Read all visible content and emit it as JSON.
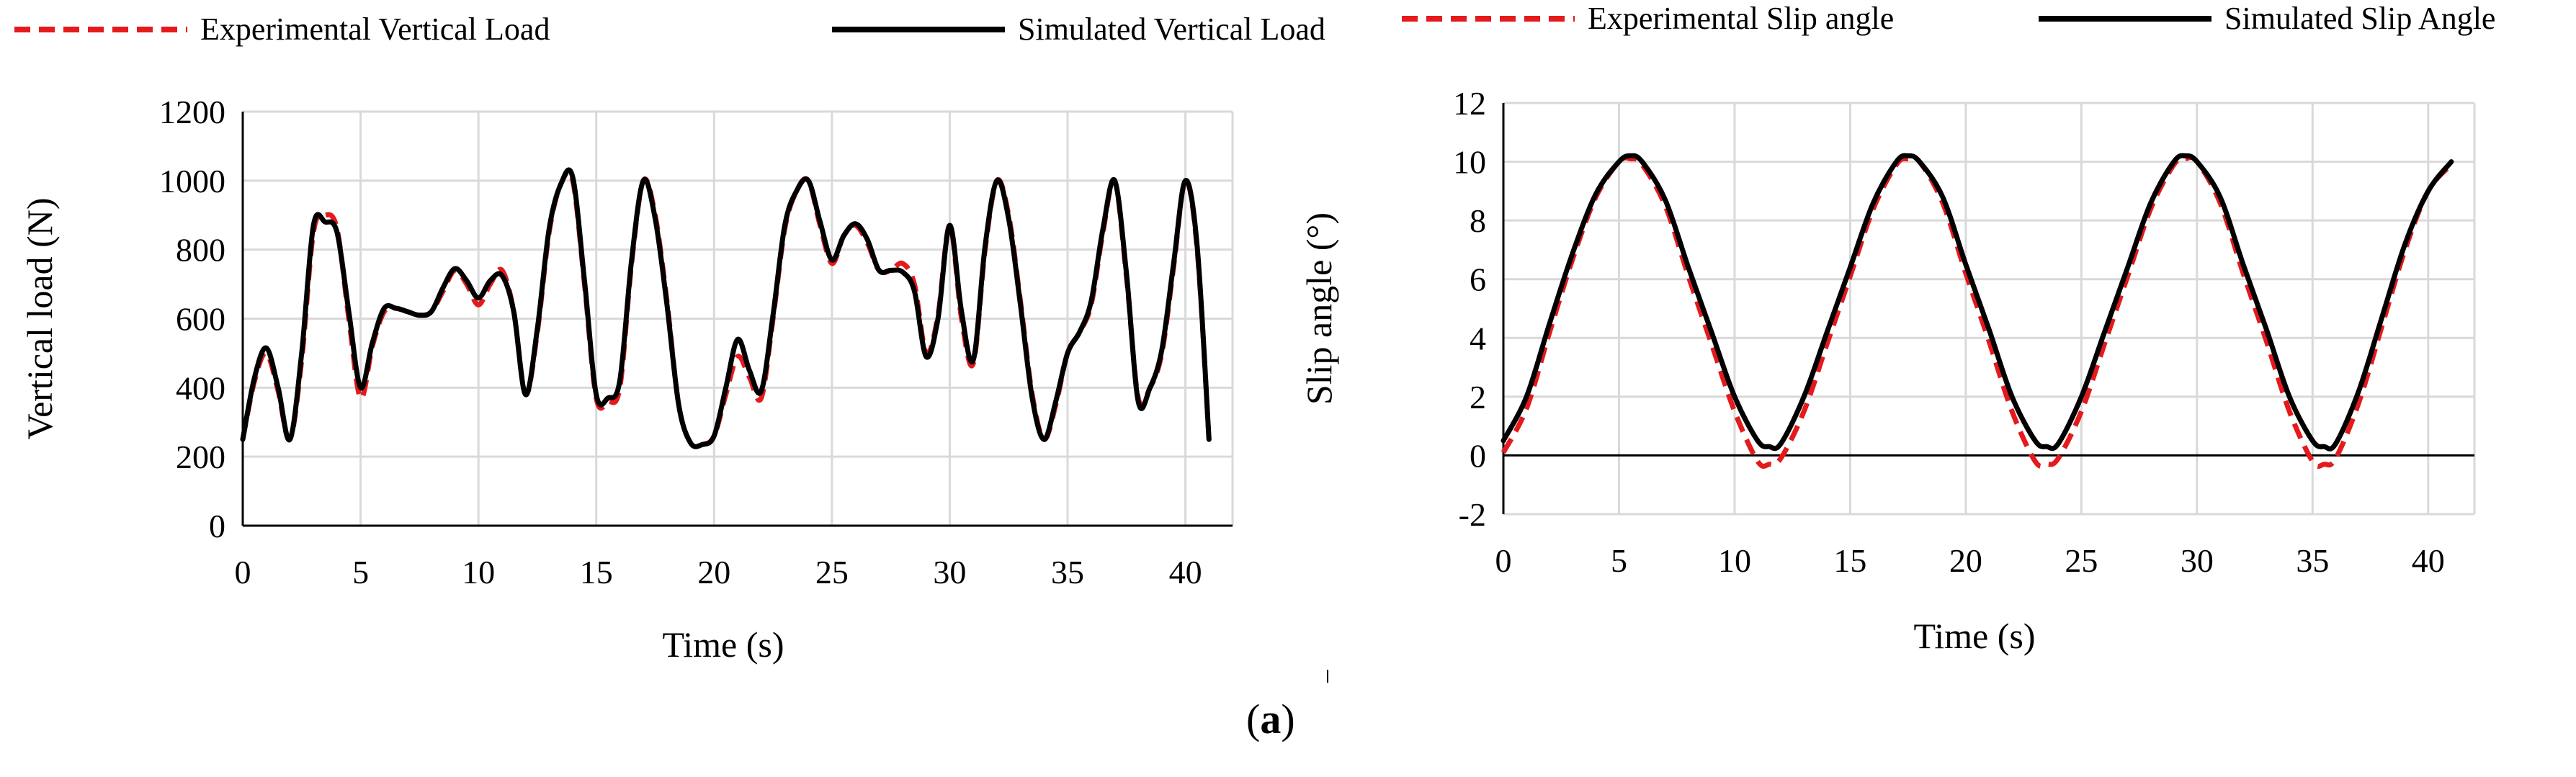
{
  "figure_label": {
    "open": "(",
    "letter": "a",
    "close": ")"
  },
  "colors": {
    "experimental": "#e41a1c",
    "simulated": "#000000",
    "grid": "#d9d9d9",
    "axis": "#000000"
  },
  "chart_data": [
    {
      "type": "line",
      "xlabel": "Time (s)",
      "ylabel": "Vertical load (N)",
      "xlim": [
        0,
        42
      ],
      "ylim": [
        0,
        1200
      ],
      "xticks": [
        0,
        5,
        10,
        15,
        20,
        25,
        30,
        35,
        40
      ],
      "yticks": [
        0,
        200,
        400,
        600,
        800,
        1000,
        1200
      ],
      "grid": true,
      "legend": "top",
      "series": [
        {
          "name": "Experimental Vertical Load",
          "style": "dashed",
          "x": [
            0,
            0.5,
            1,
            1.5,
            2,
            2.5,
            3,
            3.5,
            4,
            4.5,
            5,
            5.5,
            6,
            6.5,
            7,
            7.5,
            8,
            8.5,
            9,
            9.5,
            10,
            10.5,
            11,
            11.5,
            12,
            12.5,
            13,
            13.5,
            14,
            14.5,
            15,
            15.5,
            16,
            16.5,
            17,
            17.5,
            18,
            18.5,
            19,
            19.5,
            20,
            20.5,
            21,
            21.5,
            22,
            22.5,
            23,
            23.5,
            24,
            24.5,
            25,
            25.5,
            26,
            26.5,
            27,
            27.5,
            28,
            28.5,
            29,
            29.5,
            30,
            30.5,
            31,
            31.5,
            32,
            32.5,
            33,
            33.5,
            34,
            34.5,
            35,
            35.5,
            36,
            36.5,
            37,
            37.5,
            38,
            38.5,
            39,
            39.5,
            40,
            40.5,
            41
          ],
          "y": [
            250,
            420,
            500,
            390,
            250,
            480,
            850,
            900,
            860,
            600,
            370,
            520,
            620,
            630,
            620,
            610,
            620,
            680,
            740,
            700,
            640,
            700,
            740,
            620,
            380,
            560,
            850,
            990,
            1000,
            700,
            370,
            360,
            400,
            760,
            1000,
            900,
            650,
            350,
            240,
            235,
            260,
            380,
            490,
            430,
            370,
            600,
            860,
            970,
            1000,
            870,
            760,
            840,
            870,
            820,
            740,
            740,
            760,
            700,
            500,
            610,
            870,
            600,
            470,
            800,
            1000,
            900,
            650,
            380,
            250,
            350,
            500,
            560,
            640,
            850,
            1000,
            720,
            370,
            400,
            500,
            750,
            1000,
            800,
            250
          ]
        },
        {
          "name": "Simulated Vertical Load",
          "style": "solid",
          "x": [
            0,
            0.5,
            1,
            1.5,
            2,
            2.5,
            3,
            3.5,
            4,
            4.5,
            5,
            5.5,
            6,
            6.5,
            7,
            7.5,
            8,
            8.5,
            9,
            9.5,
            10,
            10.5,
            11,
            11.5,
            12,
            12.5,
            13,
            13.5,
            14,
            14.5,
            15,
            15.5,
            16,
            16.5,
            17,
            17.5,
            18,
            18.5,
            19,
            19.5,
            20,
            20.5,
            21,
            21.5,
            22,
            22.5,
            23,
            23.5,
            24,
            24.5,
            25,
            25.5,
            26,
            26.5,
            27,
            27.5,
            28,
            28.5,
            29,
            29.5,
            30,
            30.5,
            31,
            31.5,
            32,
            32.5,
            33,
            33.5,
            34,
            34.5,
            35,
            35.5,
            36,
            36.5,
            37,
            37.5,
            38,
            38.5,
            39,
            39.5,
            40,
            40.5,
            41
          ],
          "y": [
            250,
            430,
            515,
            400,
            250,
            500,
            870,
            880,
            850,
            620,
            400,
            530,
            630,
            630,
            620,
            610,
            620,
            690,
            745,
            710,
            660,
            710,
            725,
            620,
            380,
            570,
            860,
            990,
            1010,
            710,
            380,
            370,
            420,
            770,
            1000,
            890,
            640,
            350,
            240,
            235,
            260,
            400,
            540,
            450,
            390,
            610,
            870,
            970,
            1000,
            880,
            770,
            840,
            875,
            830,
            740,
            740,
            735,
            680,
            490,
            600,
            870,
            620,
            480,
            810,
            1000,
            890,
            640,
            370,
            250,
            360,
            500,
            560,
            650,
            860,
            1000,
            730,
            360,
            400,
            510,
            760,
            1000,
            810,
            250
          ]
        }
      ]
    },
    {
      "type": "line",
      "xlabel": "Time (s)",
      "ylabel": "Slip angle (°)",
      "xlim": [
        0,
        42
      ],
      "ylim": [
        -2,
        12
      ],
      "xticks": [
        0,
        5,
        10,
        15,
        20,
        25,
        30,
        35,
        40
      ],
      "yticks": [
        -2,
        0,
        2,
        4,
        6,
        8,
        10,
        12
      ],
      "grid": true,
      "legend": "top",
      "series": [
        {
          "name": "Experimental Slip angle",
          "style": "dashed",
          "x": [
            0,
            1,
            2,
            3,
            4,
            5,
            5.5,
            6,
            7,
            8,
            9,
            10,
            11,
            11.5,
            12,
            13,
            14,
            15,
            16,
            17,
            17.5,
            18,
            19,
            20,
            21,
            22,
            23,
            23.5,
            24,
            25,
            26,
            27,
            28,
            29,
            29.5,
            30,
            31,
            32,
            33,
            34,
            35,
            35.5,
            36,
            37,
            38,
            39,
            40,
            41
          ],
          "y": [
            0.1,
            1.6,
            4.2,
            6.7,
            8.8,
            10.0,
            10.1,
            9.9,
            8.5,
            6.1,
            3.8,
            1.5,
            -0.2,
            -0.3,
            -0.1,
            1.5,
            3.8,
            6.1,
            8.4,
            9.9,
            10.1,
            10.0,
            8.6,
            6.2,
            3.9,
            1.5,
            -0.2,
            -0.3,
            -0.1,
            1.5,
            3.8,
            6.1,
            8.4,
            9.9,
            10.1,
            10.0,
            8.6,
            6.2,
            3.9,
            1.5,
            -0.2,
            -0.3,
            -0.1,
            1.8,
            4.4,
            7.0,
            9.0,
            9.9
          ]
        },
        {
          "name": "Simulated Slip Angle",
          "style": "solid",
          "x": [
            0,
            1,
            2,
            3,
            4,
            5,
            5.5,
            6,
            7,
            8,
            9,
            10,
            11,
            11.5,
            12,
            13,
            14,
            15,
            16,
            17,
            17.5,
            18,
            19,
            20,
            21,
            22,
            23,
            23.5,
            24,
            25,
            26,
            27,
            28,
            29,
            29.5,
            30,
            31,
            32,
            33,
            34,
            35,
            35.5,
            36,
            37,
            38,
            39,
            40,
            41
          ],
          "y": [
            0.5,
            2.0,
            4.5,
            6.9,
            8.9,
            10.0,
            10.2,
            10.0,
            8.7,
            6.4,
            4.2,
            2.0,
            0.5,
            0.3,
            0.4,
            2.0,
            4.2,
            6.4,
            8.6,
            10.0,
            10.2,
            10.0,
            8.8,
            6.5,
            4.3,
            2.0,
            0.5,
            0.3,
            0.4,
            2.0,
            4.2,
            6.4,
            8.6,
            10.0,
            10.2,
            10.0,
            8.8,
            6.5,
            4.3,
            2.0,
            0.5,
            0.3,
            0.4,
            2.2,
            4.7,
            7.2,
            9.0,
            10.0
          ]
        }
      ]
    }
  ]
}
